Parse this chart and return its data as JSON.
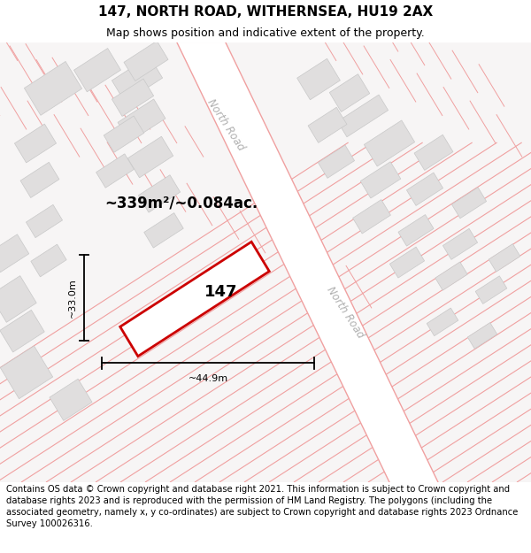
{
  "title": "147, NORTH ROAD, WITHERNSEA, HU19 2AX",
  "subtitle": "Map shows position and indicative extent of the property.",
  "footer": "Contains OS data © Crown copyright and database right 2021. This information is subject to Crown copyright and database rights 2023 and is reproduced with the permission of HM Land Registry. The polygons (including the associated geometry, namely x, y co-ordinates) are subject to Crown copyright and database rights 2023 Ordnance Survey 100026316.",
  "area_label": "~339m²/~0.084ac.",
  "property_label": "147",
  "dim_width": "~44.9m",
  "dim_height": "~33.0m",
  "road_label_1": "North Road",
  "road_label_2": "North Road",
  "map_bg": "#f7f5f5",
  "plot_line_color": "#f0a0a0",
  "plot_fill": "#faf5f5",
  "road_fill": "#f8f0f0",
  "building_fill": "#e0dede",
  "building_edge": "#c8c8c8",
  "property_fill": "white",
  "property_edge": "#cc0000",
  "dim_color": "#111111",
  "title_fontsize": 11,
  "subtitle_fontsize": 9,
  "footer_fontsize": 7.2
}
